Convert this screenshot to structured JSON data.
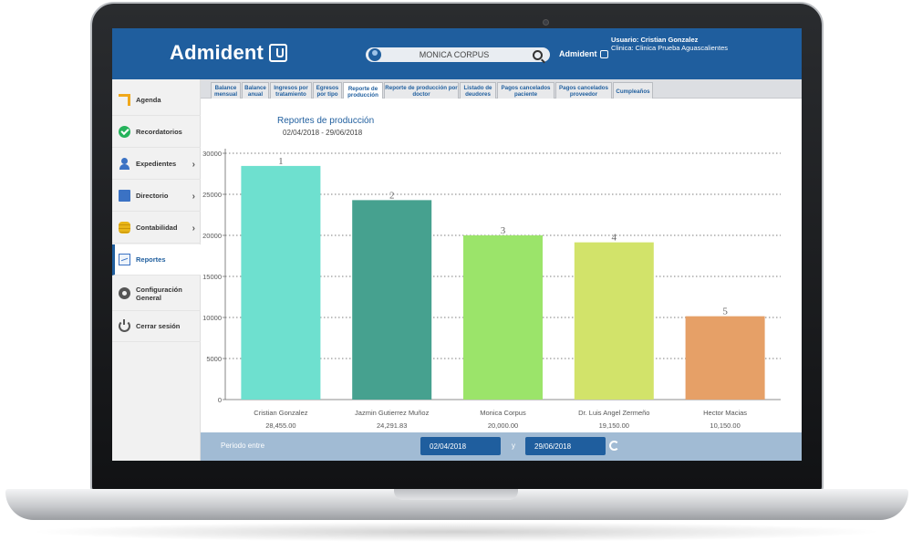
{
  "header": {
    "logo": "Admident",
    "brand_small": "Admident",
    "search": {
      "value": "MONICA CORPUS",
      "placeholder": ""
    },
    "user_line": "Usuario: Cristian Gonzalez",
    "clinic_line": "Clinica: Clinica Prueba Aguascalientes"
  },
  "sidebar": {
    "items": [
      {
        "label": "Agenda",
        "icon": "agenda-icon",
        "chevron": false
      },
      {
        "label": "Recordatorios",
        "icon": "check-icon",
        "chevron": false
      },
      {
        "label": "Expedientes",
        "icon": "person-icon",
        "chevron": true
      },
      {
        "label": "Directorio",
        "icon": "book-icon",
        "chevron": true
      },
      {
        "label": "Contabilidad",
        "icon": "coins-icon",
        "chevron": true
      },
      {
        "label": "Reportes",
        "icon": "chart-icon",
        "chevron": false,
        "active": true
      },
      {
        "label": "Configuración General",
        "icon": "gear-icon",
        "chevron": false
      },
      {
        "label": "Cerrar sesión",
        "icon": "power-icon",
        "chevron": false
      }
    ]
  },
  "tabs": [
    {
      "label": "Balance mensual"
    },
    {
      "label": "Balance anual"
    },
    {
      "label": "Ingresos por tratamiento"
    },
    {
      "label": "Egresos por tipo"
    },
    {
      "label": "Reporte de producción",
      "active": true
    },
    {
      "label": "Reporte de producción por doctor"
    },
    {
      "label": "Listado de deudores"
    },
    {
      "label": "Pagos cancelados paciente"
    },
    {
      "label": "Pagos cancelados proveedor"
    },
    {
      "label": "Cumpleaños"
    }
  ],
  "chart_data": {
    "type": "bar",
    "title": "Reportes de producción",
    "subtitle": "02/04/2018 - 29/06/2018",
    "categories": [
      "Cristian Gonzalez",
      "Jazmin Gutierrez Muñoz",
      "Monica Corpus",
      "Dr. Luis Angel Zermeño",
      "Hector Macias"
    ],
    "values": [
      28455,
      24291.83,
      20000,
      19150,
      10150
    ],
    "value_labels": [
      "28,455.00",
      "24,291.83",
      "20,000.00",
      "19,150.00",
      "10,150.00"
    ],
    "rank_labels": [
      "1",
      "2",
      "3",
      "4",
      "5"
    ],
    "colors": [
      "#6ee0cf",
      "#46a18f",
      "#9be46a",
      "#d2e36a",
      "#e6a067"
    ],
    "yticks": [
      "0",
      "5000",
      "10000",
      "15000",
      "20000",
      "25000",
      "30000"
    ],
    "ylim": [
      0,
      30000
    ],
    "grid": true
  },
  "footer": {
    "period_label": "Periodo entre",
    "from_date": "02/04/2018",
    "joiner": "y",
    "to_date": "29/06/2018"
  }
}
